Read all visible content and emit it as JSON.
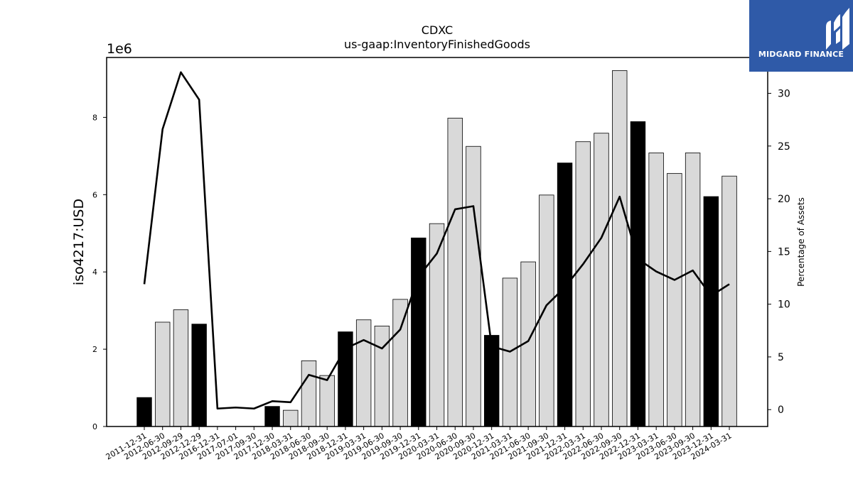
{
  "chart_data": {
    "type": "bar",
    "title": "CDXC",
    "subtitle": "us-gaap:InventoryFinishedGoods",
    "ylabel": "iso4217:USD",
    "y2label": "Percentage of Assets",
    "y_multiplier": "1e6",
    "ylim": [
      0,
      9.55
    ],
    "y2lim": [
      -1.6,
      33.4
    ],
    "yticks": [
      0,
      2,
      4,
      6,
      8
    ],
    "y2ticks": [
      0,
      5,
      10,
      15,
      20,
      25,
      30
    ],
    "categories": [
      "2011-12-31",
      "2012-06-30",
      "2012-09-29",
      "2012-12-29",
      "2016-12-31",
      "2017-07-01",
      "2017-09-30",
      "2017-12-30",
      "2018-03-31",
      "2018-06-30",
      "2018-09-30",
      "2018-12-31",
      "2019-03-31",
      "2019-06-30",
      "2019-09-30",
      "2019-12-31",
      "2020-03-31",
      "2020-06-30",
      "2020-09-30",
      "2020-12-31",
      "2021-03-31",
      "2021-06-30",
      "2021-09-30",
      "2021-12-31",
      "2022-03-31",
      "2022-06-30",
      "2022-09-30",
      "2022-12-31",
      "2023-03-31",
      "2023-06-30",
      "2023-09-30",
      "2023-12-31",
      "2024-03-31"
    ],
    "series": [
      {
        "kind": "bar",
        "values": [
          0.75,
          2.7,
          3.02,
          2.65,
          0,
          0,
          0,
          0.52,
          0.42,
          1.7,
          1.32,
          2.45,
          2.76,
          2.6,
          3.29,
          4.88,
          5.25,
          7.98,
          7.25,
          2.36,
          3.84,
          4.26,
          5.99,
          6.82,
          7.37,
          7.59,
          9.21,
          7.89,
          7.08,
          6.55,
          7.08,
          5.95,
          6.48
        ],
        "highlight": [
          true,
          false,
          false,
          true,
          false,
          false,
          false,
          true,
          false,
          false,
          false,
          true,
          false,
          false,
          false,
          true,
          false,
          false,
          false,
          true,
          false,
          false,
          false,
          true,
          false,
          false,
          false,
          true,
          false,
          false,
          false,
          true,
          false
        ]
      },
      {
        "kind": "line",
        "axis": "right",
        "values": [
          11.9,
          26.6,
          32.0,
          29.4,
          0.1,
          0.2,
          0.1,
          0.8,
          0.7,
          3.3,
          2.8,
          5.8,
          6.6,
          5.8,
          7.6,
          12.6,
          14.8,
          19.0,
          19.3,
          6.0,
          5.5,
          6.5,
          9.9,
          11.6,
          13.8,
          16.3,
          20.2,
          14.3,
          13.1,
          12.3,
          13.2,
          10.8,
          11.9
        ]
      }
    ],
    "colors": {
      "bar_fill": "#d9d9d9",
      "bar_highlight": "#000000",
      "bar_edge": "#000000",
      "line": "#000000"
    },
    "grid": false,
    "legend": "none"
  },
  "logo": {
    "text": "MIDGARD FINANCE",
    "background": "#2f5aa8"
  }
}
